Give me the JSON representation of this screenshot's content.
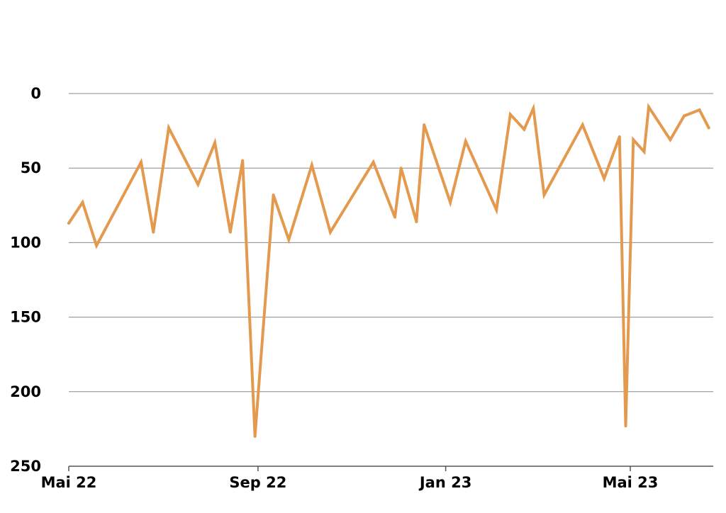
{
  "chart_data": {
    "type": "line",
    "title": "",
    "xlabel": "",
    "ylabel": "",
    "y_inverted": true,
    "ylim": [
      0,
      250
    ],
    "yticks": [
      0,
      50,
      100,
      150,
      200,
      250
    ],
    "xlim": [
      "2022-05-01",
      "2023-07-01"
    ],
    "xticks": [
      {
        "date": "2022-05-01",
        "label": "Mai 22"
      },
      {
        "date": "2022-09-01",
        "label": "Sep 22"
      },
      {
        "date": "2023-01-01",
        "label": "Jan 23"
      },
      {
        "date": "2023-05-01",
        "label": "Mai 23"
      }
    ],
    "grid": "horizontal",
    "color": "#E39A4F",
    "series": [
      {
        "points": [
          {
            "x": "2022-05-01",
            "y": 87
          },
          {
            "x": "2022-05-10",
            "y": 73
          },
          {
            "x": "2022-05-19",
            "y": 102
          },
          {
            "x": "2022-06-17",
            "y": 46
          },
          {
            "x": "2022-06-25",
            "y": 93
          },
          {
            "x": "2022-07-05",
            "y": 23
          },
          {
            "x": "2022-07-24",
            "y": 61
          },
          {
            "x": "2022-08-04",
            "y": 33
          },
          {
            "x": "2022-08-14",
            "y": 93
          },
          {
            "x": "2022-08-22",
            "y": 45
          },
          {
            "x": "2022-08-30",
            "y": 230
          },
          {
            "x": "2022-09-11",
            "y": 68
          },
          {
            "x": "2022-09-21",
            "y": 98
          },
          {
            "x": "2022-10-06",
            "y": 48
          },
          {
            "x": "2022-10-18",
            "y": 93
          },
          {
            "x": "2022-11-15",
            "y": 46
          },
          {
            "x": "2022-11-29",
            "y": 83
          },
          {
            "x": "2022-12-03",
            "y": 50
          },
          {
            "x": "2022-12-13",
            "y": 86
          },
          {
            "x": "2022-12-18",
            "y": 21
          },
          {
            "x": "2023-01-04",
            "y": 73
          },
          {
            "x": "2023-01-14",
            "y": 32
          },
          {
            "x": "2023-02-03",
            "y": 78
          },
          {
            "x": "2023-02-12",
            "y": 14
          },
          {
            "x": "2023-02-21",
            "y": 24
          },
          {
            "x": "2023-02-27",
            "y": 10
          },
          {
            "x": "2023-03-06",
            "y": 68
          },
          {
            "x": "2023-03-31",
            "y": 21
          },
          {
            "x": "2023-04-14",
            "y": 57
          },
          {
            "x": "2023-04-24",
            "y": 29
          },
          {
            "x": "2023-04-28",
            "y": 223
          },
          {
            "x": "2023-05-03",
            "y": 31
          },
          {
            "x": "2023-05-10",
            "y": 39
          },
          {
            "x": "2023-05-13",
            "y": 9
          },
          {
            "x": "2023-05-27",
            "y": 31
          },
          {
            "x": "2023-06-05",
            "y": 15
          },
          {
            "x": "2023-06-15",
            "y": 11
          },
          {
            "x": "2023-06-21",
            "y": 23
          }
        ]
      }
    ]
  }
}
